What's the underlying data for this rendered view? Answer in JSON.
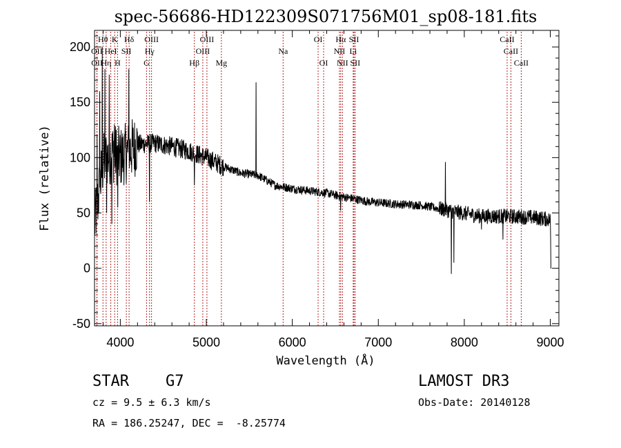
{
  "chart_data": {
    "type": "line",
    "title": "spec-56686-HD122309S071756M01_sp08-181.fits",
    "xlabel": "Wavelength (Å)",
    "ylabel": "Flux (relative)",
    "xlim": [
      3700,
      9100
    ],
    "ylim": [
      -52,
      215
    ],
    "x_ticks": [
      4000,
      5000,
      6000,
      7000,
      8000,
      9000
    ],
    "y_ticks": [
      -50,
      0,
      50,
      100,
      150,
      200
    ],
    "continuum": [
      [
        3700,
        40
      ],
      [
        3800,
        95
      ],
      [
        3900,
        105
      ],
      [
        4000,
        100
      ],
      [
        4200,
        112
      ],
      [
        4400,
        113
      ],
      [
        4600,
        110
      ],
      [
        4800,
        106
      ],
      [
        5000,
        100
      ],
      [
        5200,
        92
      ],
      [
        5400,
        86
      ],
      [
        5600,
        84
      ],
      [
        5800,
        75
      ],
      [
        6000,
        72
      ],
      [
        6200,
        70
      ],
      [
        6400,
        68
      ],
      [
        6500,
        66
      ],
      [
        6700,
        63
      ],
      [
        6900,
        60
      ],
      [
        7200,
        58
      ],
      [
        7500,
        57
      ],
      [
        7700,
        54
      ],
      [
        7900,
        51
      ],
      [
        8200,
        47
      ],
      [
        8500,
        47
      ],
      [
        8800,
        46
      ],
      [
        9000,
        44
      ],
      [
        9010,
        0
      ]
    ],
    "features": [
      {
        "x": 3730,
        "y": 120
      },
      {
        "x": 3760,
        "y": 160
      },
      {
        "x": 3790,
        "y": 200
      },
      {
        "x": 3820,
        "y": 180
      },
      {
        "x": 3840,
        "y": 50
      },
      {
        "x": 3870,
        "y": 175
      },
      {
        "x": 3900,
        "y": 40
      },
      {
        "x": 3930,
        "y": 130
      },
      {
        "x": 3970,
        "y": 55
      },
      {
        "x": 4100,
        "y": 180
      },
      {
        "x": 4340,
        "y": 60
      },
      {
        "x": 4861,
        "y": 75
      },
      {
        "x": 5577,
        "y": 168
      },
      {
        "x": 6563,
        "y": 52
      },
      {
        "x": 7780,
        "y": 96
      },
      {
        "x": 7850,
        "y": -5
      },
      {
        "x": 7880,
        "y": 5
      },
      {
        "x": 8200,
        "y": 35
      },
      {
        "x": 8450,
        "y": 26
      }
    ],
    "lines": [
      {
        "name": "Hθ",
        "x": 3798,
        "row": 0
      },
      {
        "name": "K",
        "x": 3934,
        "row": 0
      },
      {
        "name": "Hδ",
        "x": 4102,
        "row": 0
      },
      {
        "name": "OIII",
        "x": 4363,
        "row": 0
      },
      {
        "name": "OIII",
        "x": 5007,
        "row": 0
      },
      {
        "name": "OI",
        "x": 6300,
        "row": 0
      },
      {
        "name": "Hα",
        "x": 6563,
        "row": 0
      },
      {
        "name": "SII",
        "x": 6717,
        "row": 0
      },
      {
        "name": "CaII",
        "x": 8498,
        "row": 0
      },
      {
        "name": "OII",
        "x": 3727,
        "row": 1
      },
      {
        "name": "HeI",
        "x": 3889,
        "row": 1
      },
      {
        "name": "SII",
        "x": 4070,
        "row": 1
      },
      {
        "name": "Hγ",
        "x": 4340,
        "row": 1
      },
      {
        "name": "OIII",
        "x": 4959,
        "row": 1
      },
      {
        "name": "Na",
        "x": 5893,
        "row": 1
      },
      {
        "name": "NII",
        "x": 6548,
        "row": 1
      },
      {
        "name": "Li",
        "x": 6708,
        "row": 1
      },
      {
        "name": "CaII",
        "x": 8542,
        "row": 1
      },
      {
        "name": "OII",
        "x": 3729,
        "row": 2
      },
      {
        "name": "Hη",
        "x": 3835,
        "row": 2
      },
      {
        "name": "H",
        "x": 3968,
        "row": 2
      },
      {
        "name": "G",
        "x": 4305,
        "row": 2
      },
      {
        "name": "Hβ",
        "x": 4861,
        "row": 2
      },
      {
        "name": "Mg",
        "x": 5175,
        "row": 2
      },
      {
        "name": "OI",
        "x": 6364,
        "row": 2
      },
      {
        "name": "NII",
        "x": 6583,
        "row": 2
      },
      {
        "name": "SII",
        "x": 6731,
        "row": 2
      },
      {
        "name": "CaII",
        "x": 8662,
        "row": 2
      }
    ]
  },
  "info": {
    "class": "STAR",
    "subclass": "G7",
    "survey": "LAMOST DR3",
    "cz": "cz = 9.5 ± 6.3 km/s",
    "obs_date": "Obs-Date: 20140128",
    "radec": "RA = 186.25247, DEC =  -8.25774"
  },
  "colors": {
    "line": "#000000",
    "marker": "#b22222"
  }
}
